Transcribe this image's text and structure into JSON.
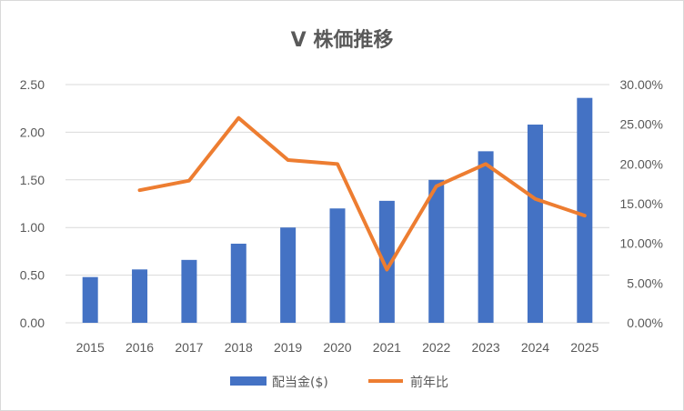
{
  "chart_data": {
    "type": "bar",
    "title": "V 株価推移",
    "categories": [
      "2015",
      "2016",
      "2017",
      "2018",
      "2019",
      "2020",
      "2021",
      "2022",
      "2023",
      "2024",
      "2025"
    ],
    "series": [
      {
        "name": "配当金($)",
        "type": "bar",
        "axis": "left",
        "color": "#4472C4",
        "values": [
          0.48,
          0.56,
          0.66,
          0.83,
          1.0,
          1.2,
          1.28,
          1.5,
          1.8,
          2.08,
          2.36
        ]
      },
      {
        "name": "前年比",
        "type": "line",
        "axis": "right",
        "color": "#ED7D31",
        "values": [
          null,
          0.167,
          0.179,
          0.258,
          0.205,
          0.2,
          0.067,
          0.172,
          0.2,
          0.156,
          0.135
        ]
      }
    ],
    "y_left": {
      "min": 0,
      "max": 2.5,
      "ticks": [
        "0.00",
        "0.50",
        "1.00",
        "1.50",
        "2.00",
        "2.50"
      ]
    },
    "y_right": {
      "min": 0,
      "max": 0.3,
      "ticks": [
        "0.00%",
        "5.00%",
        "10.00%",
        "15.00%",
        "20.00%",
        "25.00%",
        "30.00%"
      ]
    },
    "grid": true,
    "legend": "bottom"
  }
}
